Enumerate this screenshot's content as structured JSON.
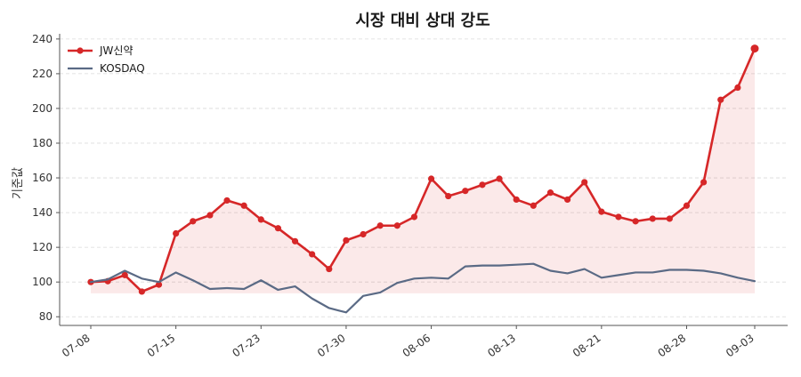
{
  "chart_data": {
    "type": "line",
    "title": "시장 대비 상대 강도",
    "xlabel": "",
    "ylabel": "기준값",
    "ylim": [
      75,
      243
    ],
    "yticks": [
      80,
      100,
      120,
      140,
      160,
      180,
      200,
      220,
      240
    ],
    "xtick_labels": [
      "07-08",
      "07-15",
      "07-23",
      "07-30",
      "08-06",
      "08-13",
      "08-21",
      "08-28",
      "09-03"
    ],
    "xtick_index": [
      0,
      5,
      10,
      15,
      20,
      25,
      30,
      35,
      39
    ],
    "grid": "horizontal dashed",
    "legend_position": "top-left",
    "fill_between": {
      "series_a": "JW신약",
      "series_b": "KOSDAQ",
      "color": "#d62728"
    },
    "series": [
      {
        "name": "JW신약",
        "color": "#d62728",
        "markers": true,
        "values": [
          100,
          100.5,
          104,
          94.5,
          98.5,
          128,
          135,
          138.5,
          147,
          144,
          136,
          131,
          123.5,
          116,
          107.5,
          124,
          127.5,
          132.5,
          132.5,
          137.5,
          159.5,
          149.5,
          152.5,
          156,
          159.5,
          147.5,
          144,
          151.5,
          147.5,
          157.5,
          140.5,
          137.5,
          135,
          136.5,
          136.5,
          144,
          157.5,
          205,
          212,
          234.5
        ]
      },
      {
        "name": "KOSDAQ",
        "color": "#5a6a85",
        "markers": false,
        "values": [
          100,
          101.5,
          106.5,
          102,
          100,
          105.5,
          101,
          96,
          96.5,
          96,
          101,
          95.5,
          97.5,
          90.5,
          85,
          82.5,
          92,
          94,
          99.5,
          102,
          102.5,
          102,
          109,
          109.5,
          109.5,
          110,
          110.5,
          106.5,
          105,
          107.5,
          102.5,
          104,
          105.5,
          105.5,
          107,
          107,
          106.5,
          105,
          102.5,
          100.5
        ]
      }
    ]
  }
}
